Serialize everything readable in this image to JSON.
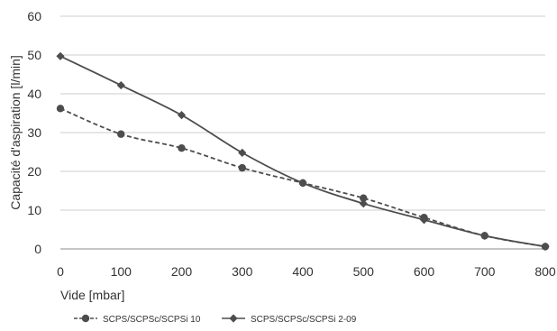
{
  "chart_data": {
    "type": "line",
    "title": "",
    "xlabel": "Vide [mbar]",
    "ylabel": "Capacité d'aspiration [l/min]",
    "xlim": [
      0,
      800
    ],
    "ylim": [
      0,
      60
    ],
    "x_ticks": [
      "0",
      "100",
      "200",
      "300",
      "400",
      "500",
      "600",
      "700",
      "800"
    ],
    "y_ticks": [
      "0",
      "10",
      "20",
      "30",
      "40",
      "50",
      "60"
    ],
    "grid": "horizontal",
    "legend": "bottom-left",
    "series": [
      {
        "name": "SCPS/SCPSc/SCPSi 10",
        "marker": "circle",
        "line_style": "dashed",
        "color": "#4d4d4d",
        "x": [
          0,
          100,
          200,
          300,
          400,
          500,
          600,
          700,
          800
        ],
        "y": [
          36.2,
          29.6,
          26,
          20.9,
          17,
          13.1,
          8.1,
          3.4,
          0.6
        ]
      },
      {
        "name": "SCPS/SCPSc/SCPSi 2-09",
        "marker": "diamond",
        "line_style": "solid",
        "color": "#4d4d4d",
        "x": [
          0,
          100,
          200,
          300,
          400,
          500,
          600,
          700,
          800
        ],
        "y": [
          49.7,
          42.2,
          34.5,
          24.8,
          17,
          11.7,
          7.5,
          3.4,
          0.6
        ]
      }
    ]
  }
}
